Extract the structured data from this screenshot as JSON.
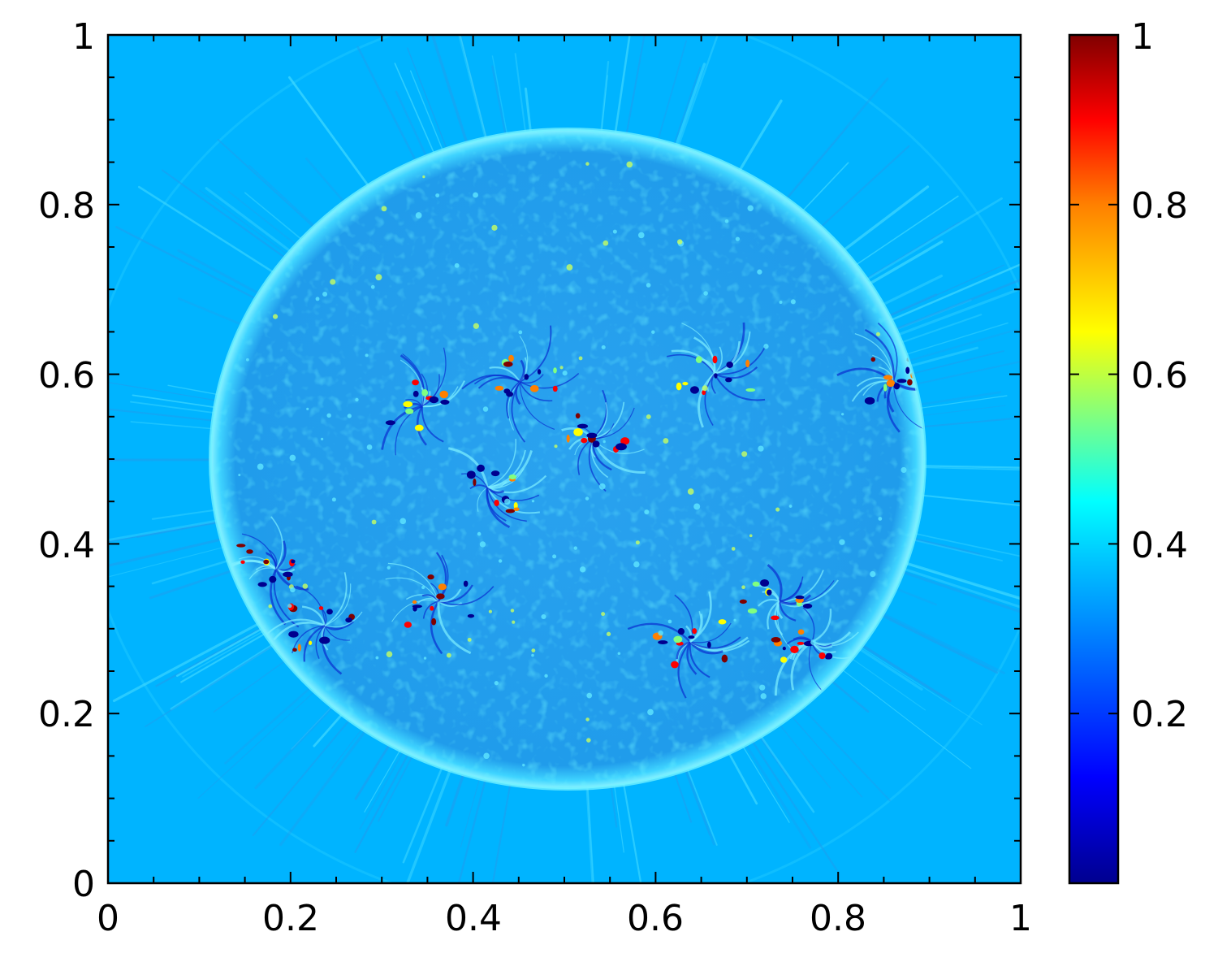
{
  "image": {
    "description_free": true,
    "colormap": "jet",
    "background_color": "#00b4ff",
    "disk_color": "#23a3ee",
    "x_axis": {
      "range": [
        0,
        1
      ],
      "tick_labels": [
        "0",
        "0.2",
        "0.4",
        "0.6",
        "0.8",
        "1"
      ]
    },
    "y_axis": {
      "range": [
        0,
        1
      ],
      "tick_labels": [
        "0",
        "0.2",
        "0.4",
        "0.6",
        "0.8",
        "1"
      ]
    },
    "colorbar": {
      "range": [
        0,
        1
      ],
      "tick_labels": [
        "0.2",
        "0.4",
        "0.6",
        "0.8",
        "1"
      ],
      "colors": [
        "#00008f",
        "#0000ff",
        "#0080ff",
        "#00ffff",
        "#80ff80",
        "#ffff00",
        "#ff8000",
        "#ff0000",
        "#800000"
      ]
    }
  }
}
